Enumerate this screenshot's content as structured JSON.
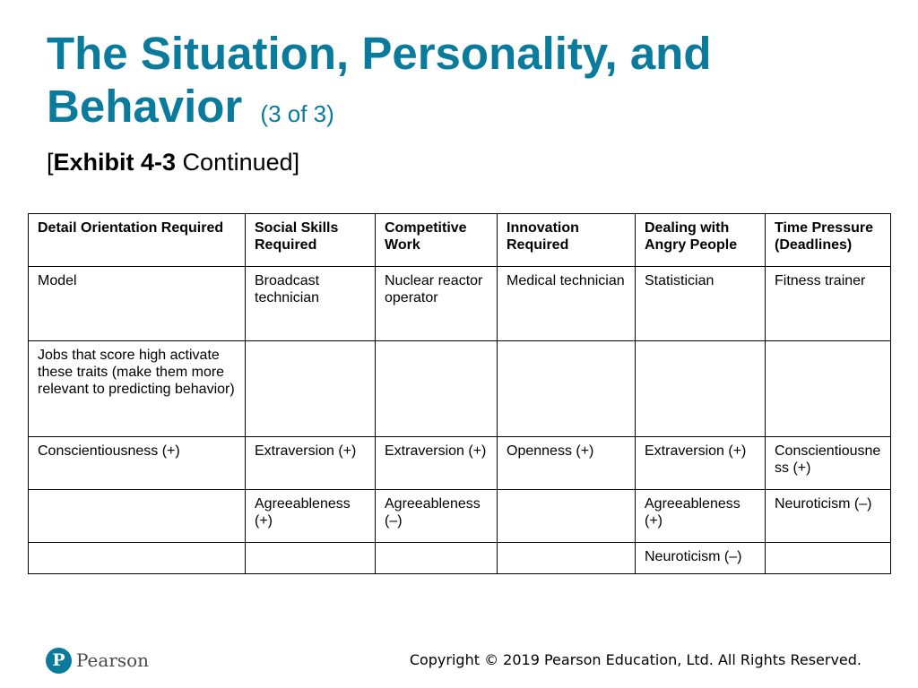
{
  "slide": {
    "title": "The Situation, Personality, and Behavior",
    "title_part": "(3 of 3)",
    "subtitle_open": "[",
    "subtitle_bold": "Exhibit 4-3",
    "subtitle_rest": " Continued]"
  },
  "table": {
    "headers": [
      "Detail Orientation Required",
      "Social Skills Required",
      "Competitive Work",
      "Innovation Required",
      "Dealing with Angry People",
      "Time Pressure (Deadlines)"
    ],
    "rows": [
      [
        "Model",
        "Broadcast technician",
        "Nuclear reactor operator",
        "Medical technician",
        "Statistician",
        "Fitness trainer"
      ],
      [
        "Jobs that score high activate these traits (make them more relevant to predicting behavior)",
        "",
        "",
        "",
        "",
        ""
      ],
      [
        "Conscientiousness (+)",
        "Extraversion (+)",
        "Extraversion (+)",
        "Openness (+)",
        "Extraversion (+)",
        "Conscientiousness (+)"
      ],
      [
        "",
        "Agreeableness (+)",
        "Agreeableness (–)",
        "",
        "Agreeableness (+)",
        "Neuroticism (–)"
      ],
      [
        "",
        "",
        "",
        "",
        "Neuroticism (–)",
        ""
      ]
    ]
  },
  "footer": {
    "logo_letter": "P",
    "logo_text": "Pearson",
    "copyright": "Copyright © 2019 Pearson Education, Ltd. All Rights Reserved."
  },
  "colors": {
    "accent": "#0a7b9c",
    "text": "#000000",
    "border": "#000000"
  },
  "icons": {
    "logo": "pearson-logo-icon"
  }
}
